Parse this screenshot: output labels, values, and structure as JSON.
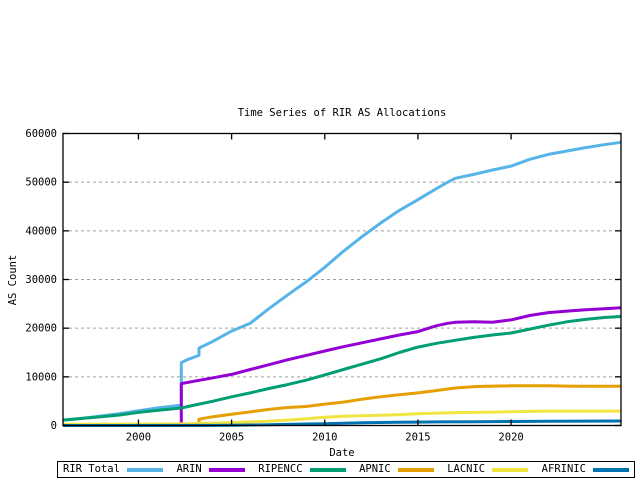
{
  "chart_data": {
    "type": "line",
    "title": "Time Series of RIR AS Allocations",
    "xlabel": "Date",
    "ylabel": "AS Count",
    "xlim": [
      1995.95,
      2025.9
    ],
    "ylim": [
      0,
      60000
    ],
    "xticks": [
      2000,
      2005,
      2010,
      2015,
      2020
    ],
    "yticks": [
      0,
      10000,
      20000,
      30000,
      40000,
      50000,
      60000
    ],
    "grid": "horizontal-dashed",
    "grid_color": "#a0a0a0",
    "axis_color": "#000000",
    "legend_position": "bottom",
    "series": [
      {
        "name": "RIR Total",
        "color": "#56B4E9",
        "points": [
          [
            1995.95,
            1100
          ],
          [
            1997,
            1500
          ],
          [
            1998,
            1950
          ],
          [
            1999,
            2450
          ],
          [
            2000,
            3050
          ],
          [
            2001,
            3600
          ],
          [
            2002.3,
            4200
          ],
          [
            2002.3,
            12900
          ],
          [
            2002.6,
            13500
          ],
          [
            2003.25,
            14400
          ],
          [
            2003.25,
            15900
          ],
          [
            2004,
            17300
          ],
          [
            2005,
            19400
          ],
          [
            2006,
            21000
          ],
          [
            2007,
            24000
          ],
          [
            2008,
            26800
          ],
          [
            2009,
            29500
          ],
          [
            2010,
            32500
          ],
          [
            2011,
            35800
          ],
          [
            2012,
            38800
          ],
          [
            2013,
            41600
          ],
          [
            2014,
            44200
          ],
          [
            2015,
            46400
          ],
          [
            2016,
            48700
          ],
          [
            2016.6,
            50000
          ],
          [
            2017,
            50800
          ],
          [
            2018,
            51600
          ],
          [
            2019,
            52500
          ],
          [
            2020,
            53300
          ],
          [
            2021,
            54700
          ],
          [
            2022,
            55700
          ],
          [
            2023,
            56400
          ],
          [
            2024,
            57100
          ],
          [
            2025,
            57700
          ],
          [
            2025.9,
            58200
          ]
        ]
      },
      {
        "name": "ARIN",
        "color": "#9400D3",
        "points": [
          [
            1995.95,
            60
          ],
          [
            2000,
            120
          ],
          [
            2002.3,
            200
          ],
          [
            2002.3,
            8600
          ],
          [
            2003,
            9100
          ],
          [
            2004,
            9800
          ],
          [
            2005,
            10500
          ],
          [
            2006,
            11500
          ],
          [
            2007,
            12500
          ],
          [
            2008,
            13500
          ],
          [
            2009,
            14400
          ],
          [
            2010,
            15300
          ],
          [
            2011,
            16200
          ],
          [
            2012,
            17000
          ],
          [
            2013,
            17800
          ],
          [
            2014,
            18600
          ],
          [
            2015,
            19300
          ],
          [
            2016,
            20500
          ],
          [
            2016.6,
            21000
          ],
          [
            2017,
            21200
          ],
          [
            2018,
            21300
          ],
          [
            2019,
            21200
          ],
          [
            2020,
            21700
          ],
          [
            2021,
            22600
          ],
          [
            2022,
            23200
          ],
          [
            2023,
            23500
          ],
          [
            2024,
            23800
          ],
          [
            2025,
            24000
          ],
          [
            2025.9,
            24200
          ]
        ]
      },
      {
        "name": "RIPENCC",
        "color": "#009E73",
        "points": [
          [
            1995.95,
            1100
          ],
          [
            1997,
            1450
          ],
          [
            1998,
            1800
          ],
          [
            1999,
            2150
          ],
          [
            2000,
            2700
          ],
          [
            2001,
            3100
          ],
          [
            2002.3,
            3600
          ],
          [
            2003,
            4200
          ],
          [
            2004,
            5000
          ],
          [
            2005,
            5900
          ],
          [
            2006,
            6700
          ],
          [
            2007,
            7600
          ],
          [
            2008,
            8400
          ],
          [
            2009,
            9300
          ],
          [
            2010,
            10400
          ],
          [
            2011,
            11500
          ],
          [
            2012,
            12600
          ],
          [
            2013,
            13700
          ],
          [
            2014,
            15000
          ],
          [
            2015,
            16100
          ],
          [
            2016,
            16900
          ],
          [
            2017,
            17500
          ],
          [
            2018,
            18100
          ],
          [
            2019,
            18600
          ],
          [
            2020,
            19000
          ],
          [
            2021,
            19800
          ],
          [
            2022,
            20600
          ],
          [
            2023,
            21300
          ],
          [
            2024,
            21800
          ],
          [
            2025,
            22200
          ],
          [
            2025.9,
            22400
          ]
        ]
      },
      {
        "name": "APNIC",
        "color": "#E69F00",
        "points": [
          [
            1995.95,
            50
          ],
          [
            2003.25,
            100
          ],
          [
            2003.25,
            1300
          ],
          [
            2004,
            1800
          ],
          [
            2005,
            2300
          ],
          [
            2006,
            2800
          ],
          [
            2007,
            3300
          ],
          [
            2008,
            3700
          ],
          [
            2009,
            3900
          ],
          [
            2010,
            4400
          ],
          [
            2011,
            4800
          ],
          [
            2011.5,
            5100
          ],
          [
            2012,
            5400
          ],
          [
            2013,
            5900
          ],
          [
            2014,
            6300
          ],
          [
            2015,
            6700
          ],
          [
            2016,
            7200
          ],
          [
            2017,
            7700
          ],
          [
            2018,
            8000
          ],
          [
            2019,
            8100
          ],
          [
            2020,
            8150
          ],
          [
            2021,
            8150
          ],
          [
            2022,
            8150
          ],
          [
            2023,
            8100
          ],
          [
            2024,
            8050
          ],
          [
            2025.9,
            8050
          ]
        ]
      },
      {
        "name": "LACNIC",
        "color": "#F0E442",
        "points": [
          [
            1995.95,
            250
          ],
          [
            2002,
            300
          ],
          [
            2003,
            400
          ],
          [
            2004,
            500
          ],
          [
            2005,
            600
          ],
          [
            2006,
            750
          ],
          [
            2007,
            900
          ],
          [
            2008,
            1100
          ],
          [
            2009,
            1400
          ],
          [
            2010,
            1700
          ],
          [
            2011,
            1900
          ],
          [
            2012,
            2000
          ],
          [
            2013,
            2100
          ],
          [
            2014,
            2250
          ],
          [
            2015,
            2400
          ],
          [
            2016,
            2550
          ],
          [
            2017,
            2650
          ],
          [
            2018,
            2700
          ],
          [
            2019,
            2750
          ],
          [
            2020,
            2830
          ],
          [
            2021,
            2900
          ],
          [
            2022,
            2950
          ],
          [
            2023,
            2950
          ],
          [
            2024,
            2950
          ],
          [
            2025.9,
            2950
          ]
        ]
      },
      {
        "name": "AFRINIC",
        "color": "#0072B2",
        "points": [
          [
            1995.95,
            0
          ],
          [
            2004,
            30
          ],
          [
            2005,
            60
          ],
          [
            2006,
            100
          ],
          [
            2007,
            150
          ],
          [
            2008,
            220
          ],
          [
            2009,
            300
          ],
          [
            2010,
            380
          ],
          [
            2011,
            470
          ],
          [
            2012,
            550
          ],
          [
            2013,
            620
          ],
          [
            2014,
            660
          ],
          [
            2015,
            700
          ],
          [
            2016,
            740
          ],
          [
            2018,
            790
          ],
          [
            2020,
            830
          ],
          [
            2022,
            880
          ],
          [
            2024,
            900
          ],
          [
            2025.9,
            920
          ]
        ]
      }
    ]
  }
}
